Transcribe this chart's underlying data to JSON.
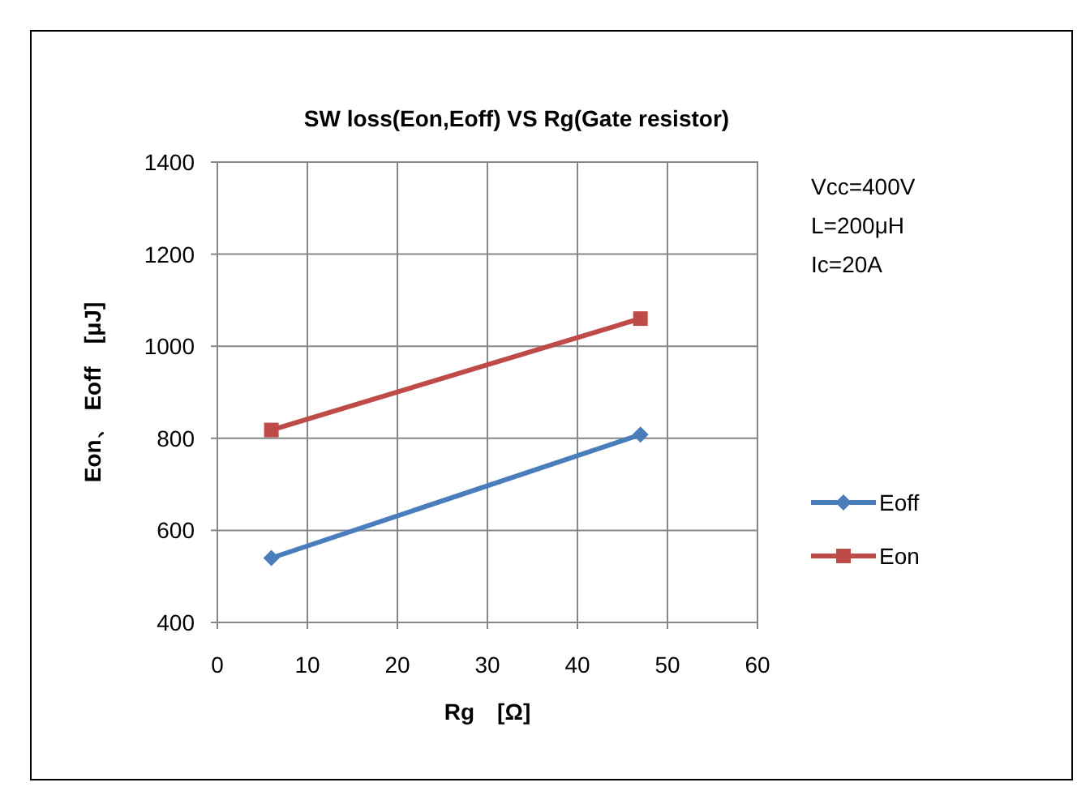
{
  "chart_data": {
    "type": "line",
    "title": "SW loss(Eon,Eoff) VS Rg(Gate resistor)",
    "xlabel": "Rg　[Ω]",
    "ylabel": "Eon、 Eoff　[μJ]",
    "series": [
      {
        "name": "Eoff",
        "color": "#4a7ebb",
        "marker": "diamond",
        "values": [
          540,
          808
        ]
      },
      {
        "name": "Eon",
        "color": "#be4b48",
        "marker": "square",
        "values": [
          818,
          1060
        ]
      }
    ],
    "x": [
      6,
      47
    ],
    "xlim": [
      0,
      60
    ],
    "xticks": [
      0,
      10,
      20,
      30,
      40,
      50,
      60
    ],
    "ylim": [
      400,
      1400
    ],
    "yticks": [
      400,
      600,
      800,
      1000,
      1200,
      1400
    ],
    "grid": true,
    "legend": "right",
    "line_style": "solid",
    "annotations": [
      "Vcc=400V",
      "L=200μH",
      "Ic=20A"
    ]
  }
}
